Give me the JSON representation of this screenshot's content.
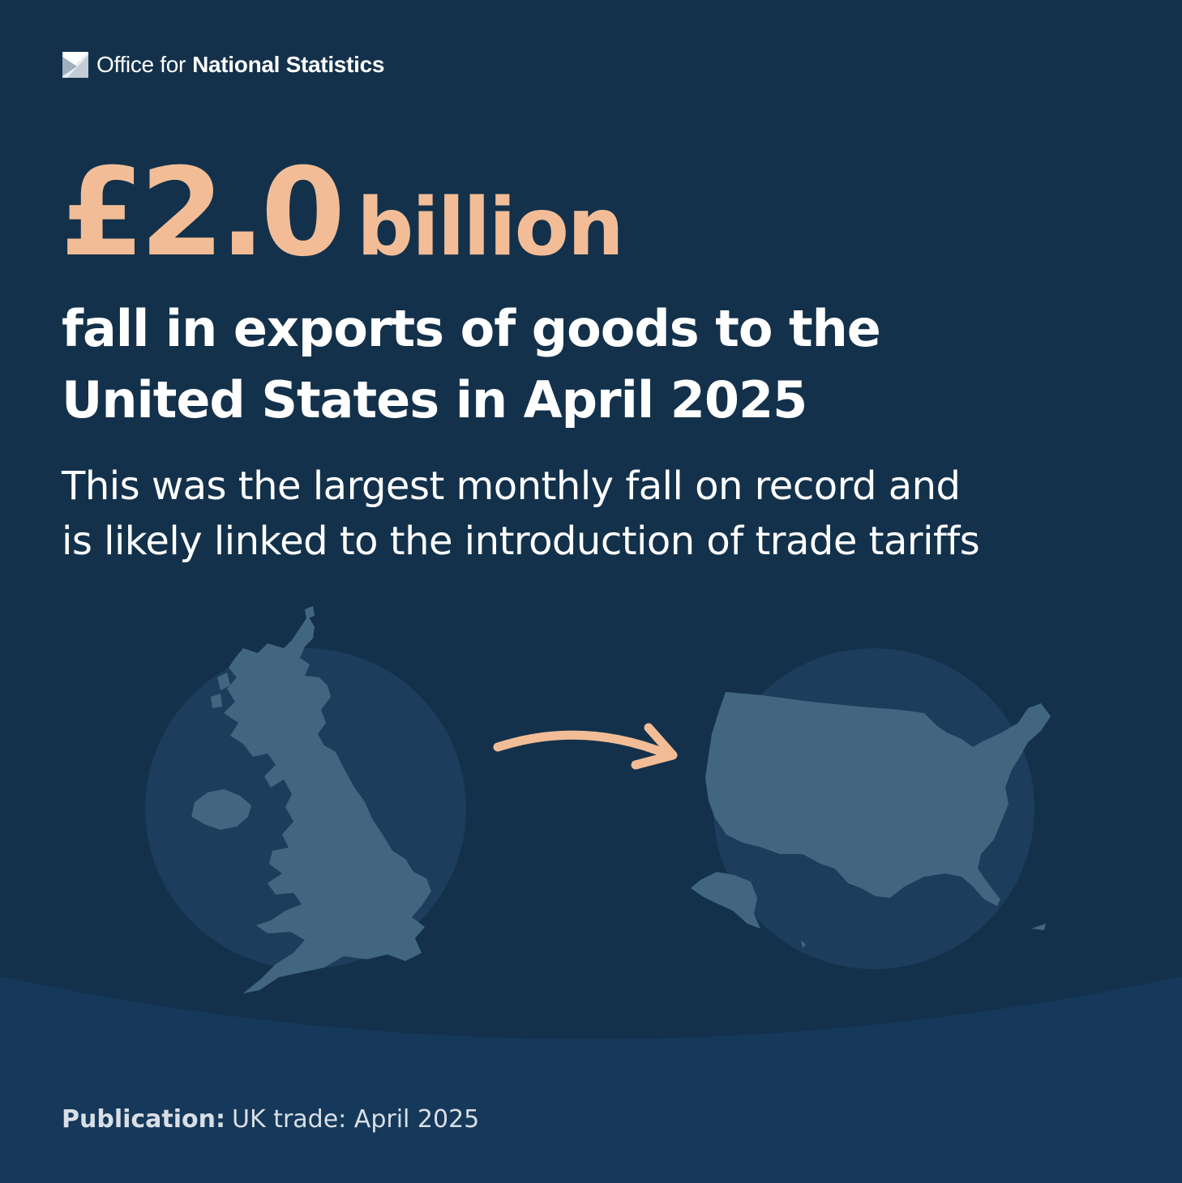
{
  "brand": {
    "logo_office": "Office for",
    "logo_name": "National Statistics"
  },
  "figure": {
    "amount": "£2.0",
    "unit": "billion"
  },
  "headline": {
    "line1": "fall in exports of goods to the",
    "line2": "United States in April 2025"
  },
  "subtext": {
    "line1": "This was the largest monthly fall on record and",
    "line2": "is likely linked to the introduction of trade tariffs"
  },
  "footer": {
    "label": "Publication:",
    "value": "UK trade: April 2025"
  },
  "illustration": {
    "from_icon": "uk-map-icon",
    "to_icon": "usa-map-icon",
    "arrow_icon": "arrow-right-icon"
  },
  "colors": {
    "background": "#13314b",
    "band": "#16385a",
    "accent": "#f2bd96",
    "circle": "#1c3d5b",
    "map": "#436680",
    "text": "#ffffff"
  }
}
